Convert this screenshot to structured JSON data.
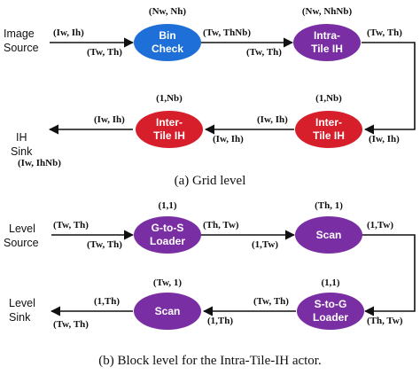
{
  "colors": {
    "blue": "#1e6fd8",
    "purple": "#7a2ea3",
    "red": "#d61f2b",
    "ink": "#111111"
  },
  "grid": {
    "io": {
      "source_line1": "Image",
      "source_line2": "Source",
      "sink_line1": "IH",
      "sink_line2": "Sink"
    },
    "nodes": [
      {
        "id": "bin-check",
        "line1": "Bin",
        "line2": "Check",
        "color": "blue",
        "rate": "(Nw, Nh)"
      },
      {
        "id": "intra-tile-ih",
        "line1": "Intra-",
        "line2": "Tile IH",
        "color": "purple",
        "rate": "(Nw, NhNb)"
      },
      {
        "id": "inter-tile-ih-right",
        "line1": "Inter-",
        "line2": "Tile IH",
        "color": "red",
        "rate": "(1,Nb)"
      },
      {
        "id": "inter-tile-ih-left",
        "line1": "Inter-",
        "line2": "Tile IH",
        "color": "red",
        "rate": "(1,Nb)"
      }
    ],
    "edges": [
      {
        "id": "src-bin-out",
        "label": "(Iw, Ih)"
      },
      {
        "id": "src-bin-in",
        "label": "(Tw, Th)"
      },
      {
        "id": "bin-intra-out",
        "label": "(Tw, ThNb)"
      },
      {
        "id": "bin-intra-in",
        "label": "(Tw, Th)"
      },
      {
        "id": "intra-inter-out",
        "label": "(Tw, Th)"
      },
      {
        "id": "intra-inter-in",
        "label": "(Iw, Ih)"
      },
      {
        "id": "inter-inter-out",
        "label": "(Iw, Ih)"
      },
      {
        "id": "inter-inter-in",
        "label": "(Iw, Ih)"
      },
      {
        "id": "inter-sink-out",
        "label": "(Iw, Ih)"
      },
      {
        "id": "inter-sink-in",
        "label": "(Iw, IhNb)"
      }
    ],
    "caption": "(a)  Grid level"
  },
  "block": {
    "io": {
      "source_line1": "Level",
      "source_line2": "Source",
      "sink_line1": "Level",
      "sink_line2": "Sink"
    },
    "nodes": [
      {
        "id": "g-to-s-loader",
        "line1": "G-to-S",
        "line2": "Loader",
        "color": "purple",
        "rate": "(1,1)"
      },
      {
        "id": "scan-top",
        "line1": "Scan",
        "line2": "",
        "color": "purple",
        "rate": "(Th, 1)"
      },
      {
        "id": "s-to-g-loader",
        "line1": "S-to-G",
        "line2": "Loader",
        "color": "purple",
        "rate": "(1,1)"
      },
      {
        "id": "scan-bottom",
        "line1": "Scan",
        "line2": "",
        "color": "purple",
        "rate": "(Tw, 1)"
      }
    ],
    "edges": [
      {
        "id": "src-g2s-out",
        "label": "(Tw, Th)"
      },
      {
        "id": "src-g2s-in",
        "label": "(Tw, Th)"
      },
      {
        "id": "g2s-scan-out",
        "label": "(Th, Tw)"
      },
      {
        "id": "g2s-scan-in",
        "label": "(1,Tw)"
      },
      {
        "id": "scan-s2g-out",
        "label": "(1,Tw)"
      },
      {
        "id": "scan-s2g-in",
        "label": "(Th, Tw)"
      },
      {
        "id": "s2g-scan-out",
        "label": "(Tw, Th)"
      },
      {
        "id": "s2g-scan-in",
        "label": "(1,Th)"
      },
      {
        "id": "scan-sink-out",
        "label": "(1,Th)"
      },
      {
        "id": "scan-sink-in",
        "label": "(Tw, Th)"
      }
    ],
    "caption": "(b)  Block level for the Intra-Tile-IH actor."
  }
}
